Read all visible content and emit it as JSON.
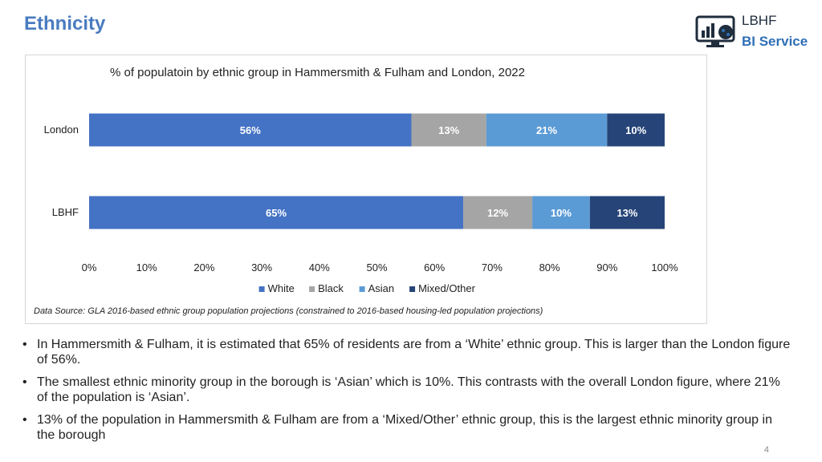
{
  "page": {
    "title": "Ethnicity",
    "logo": {
      "line1": "LBHF",
      "line2": "BI Service",
      "icon": "dashboard-monitor-icon"
    },
    "page_number": "4",
    "bullets": [
      "In Hammersmith & Fulham, it is estimated that 65% of residents are from a ‘White’ ethnic group. This is larger than the London figure of 56%.",
      "The smallest ethnic minority group in the borough is ‘Asian’ which is 10%. This contrasts with the overall London figure, where 21% of the population is ‘Asian’.",
      "13% of the population in Hammersmith & Fulham are from a ‘Mixed/Other’ ethnic group, this is the largest ethnic minority group in the borough"
    ]
  },
  "chart_data": {
    "type": "bar",
    "orientation": "horizontal",
    "stacked": true,
    "title": "% of populatoin by ethnic group in Hammersmith & Fulham and London, 2022",
    "categories": [
      "London",
      "LBHF"
    ],
    "series": [
      {
        "name": "White",
        "values": [
          56,
          65
        ],
        "labels": [
          "56%",
          "65%"
        ],
        "color": "#4472c4"
      },
      {
        "name": "Black",
        "values": [
          13,
          12
        ],
        "labels": [
          "13%",
          "12%"
        ],
        "color": "#a5a5a5"
      },
      {
        "name": "Asian",
        "values": [
          21,
          10
        ],
        "labels": [
          "21%",
          "10%"
        ],
        "color": "#5b9bd5"
      },
      {
        "name": "Mixed/Other",
        "values": [
          10,
          13
        ],
        "labels": [
          "10%",
          "13%"
        ],
        "color": "#264478"
      }
    ],
    "xlim": [
      0,
      100
    ],
    "xticks": [
      "0%",
      "10%",
      "20%",
      "30%",
      "40%",
      "50%",
      "60%",
      "70%",
      "80%",
      "90%",
      "100%"
    ],
    "grid": false,
    "legend_position": "bottom",
    "source": "Data Source: GLA 2016-based ethnic group population projections (constrained to 2016-based housing-led population projections)"
  }
}
